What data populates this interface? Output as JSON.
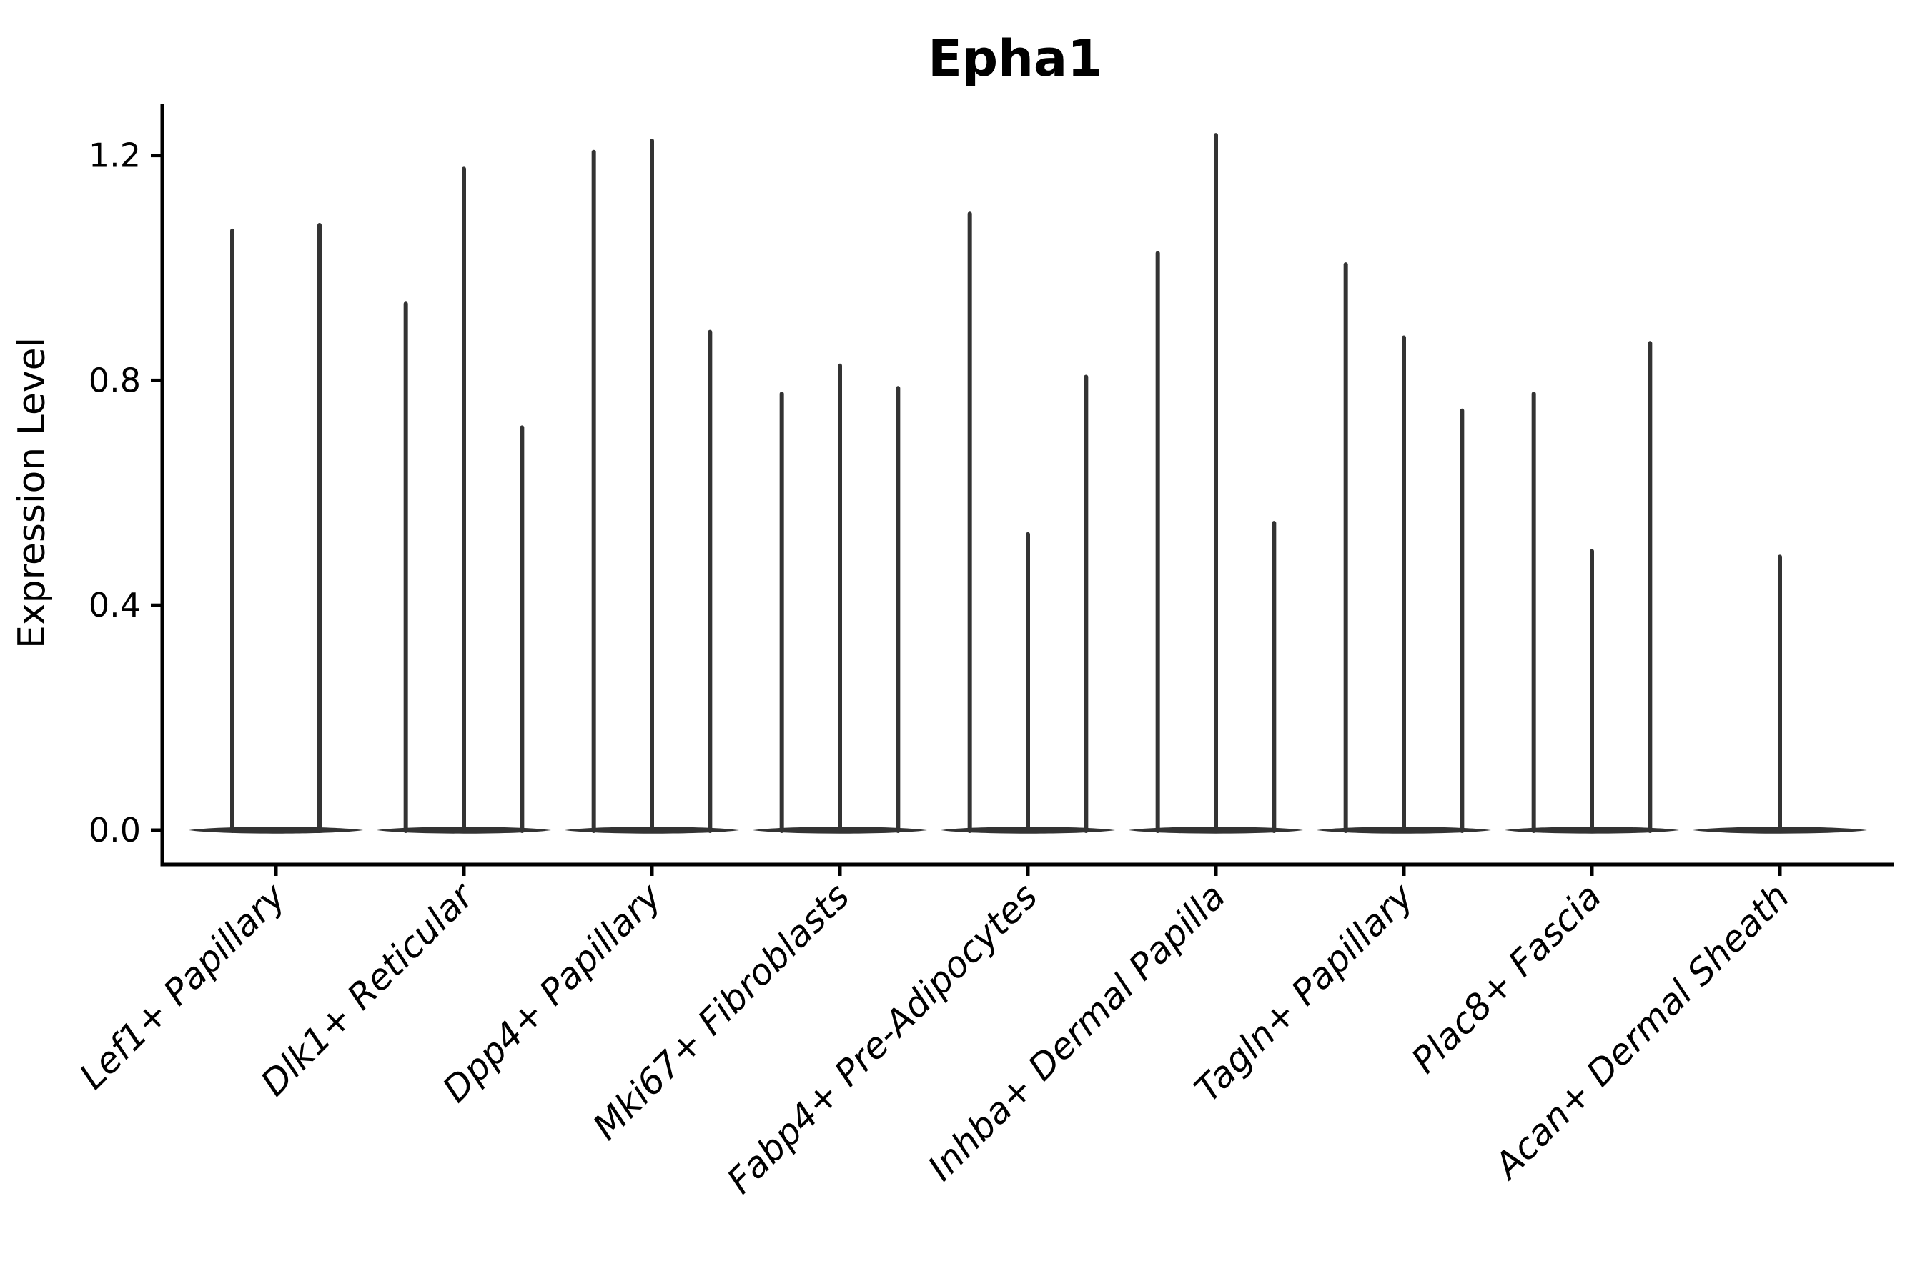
{
  "figure": {
    "title": "Epha1",
    "y_axis_label": "Expression Level"
  },
  "chart_data": {
    "type": "violin",
    "title": "Epha1",
    "xlabel": "",
    "ylabel": "Expression Level",
    "ylim": [
      0,
      1.31
    ],
    "yticks": [
      0.0,
      0.4,
      0.8,
      1.2
    ],
    "ytick_labels": [
      "0.0",
      "0.4",
      "0.8",
      "1.2"
    ],
    "grid": false,
    "legend_position": "none",
    "x_tick_rotation_degrees": 45,
    "categories": [
      "Lef1+ Papillary",
      "Dlk1+ Reticular",
      "Dpp4+ Papillary",
      "Mki67+ Fibroblasts",
      "Fabp4+ Pre-Adipocytes",
      "Inhba+ Dermal Papilla",
      "Tagln+ Papillary",
      "Plac8+ Fascia",
      "Acan+ Dermal Sheath"
    ],
    "groups": [
      {
        "category": "Lef1+ Papillary",
        "violin_peak_values": [
          1.07,
          1.08
        ]
      },
      {
        "category": "Dlk1+ Reticular",
        "violin_peak_values": [
          0.94,
          1.18,
          0.72
        ]
      },
      {
        "category": "Dpp4+ Papillary",
        "violin_peak_values": [
          1.21,
          1.23,
          0.89
        ]
      },
      {
        "category": "Mki67+ Fibroblasts",
        "violin_peak_values": [
          0.78,
          0.83,
          0.79
        ]
      },
      {
        "category": "Fabp4+ Pre-Adipocytes",
        "violin_peak_values": [
          1.1,
          0.53,
          0.81
        ]
      },
      {
        "category": "Inhba+ Dermal Papilla",
        "violin_peak_values": [
          1.03,
          1.24,
          0.55
        ]
      },
      {
        "category": "Tagln+ Papillary",
        "violin_peak_values": [
          1.01,
          0.88,
          0.75
        ]
      },
      {
        "category": "Plac8+ Fascia",
        "violin_peak_values": [
          0.78,
          0.5,
          0.87
        ]
      },
      {
        "category": "Acan+ Dermal Sheath",
        "violin_peak_values": [
          0.49
        ]
      }
    ],
    "baseline_value": 0.0,
    "colors": {
      "violin": "#333333",
      "axis": "#000000",
      "text": "#000000",
      "background": "#ffffff"
    }
  }
}
